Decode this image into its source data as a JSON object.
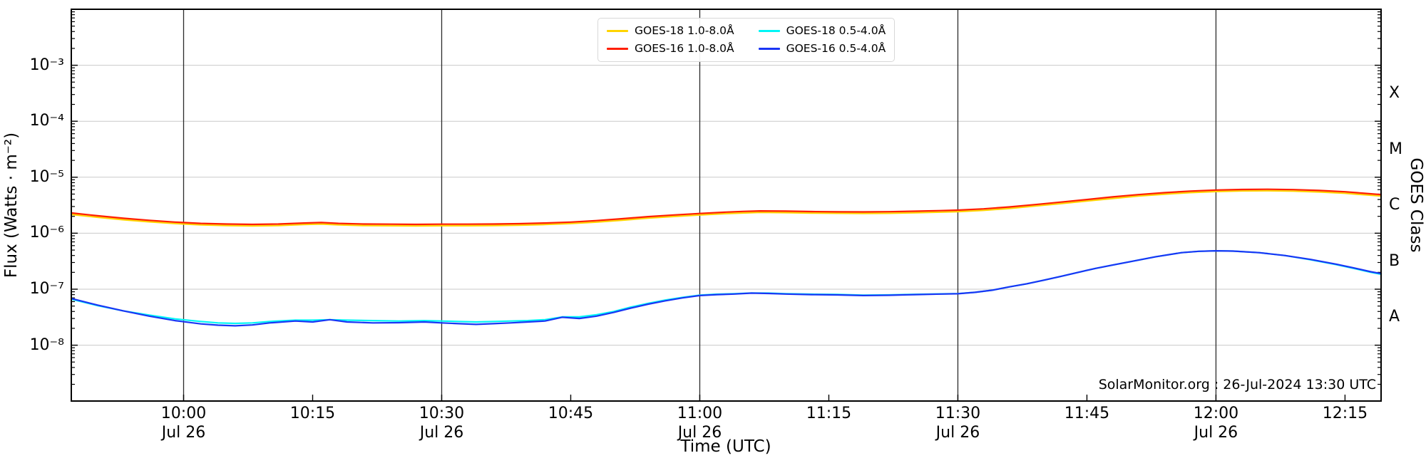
{
  "figure": {
    "xlabel": "Time (UTC)",
    "ylabel": "Flux (Watts · m⁻²)",
    "right_label": "GOES Class",
    "annotation": "SolarMonitor.org : 26-Jul-2024 13:30 UTC",
    "date_label": "Jul 26"
  },
  "legend": {
    "items": [
      {
        "label": "GOES-18 1.0-8.0Å",
        "color": "#ffd400"
      },
      {
        "label": "GOES-16 1.0-8.0Å",
        "color": "#ff1e00"
      },
      {
        "label": "GOES-18 0.5-4.0Å",
        "color": "#00f6f6"
      },
      {
        "label": "GOES-16 0.5-4.0Å",
        "color": "#1a35f5"
      }
    ]
  },
  "chart_data": {
    "type": "line",
    "title": "",
    "xlabel": "Time (UTC)",
    "ylabel": "Flux (Watts · m⁻²)",
    "yscale": "log",
    "ylim": [
      1e-09,
      0.01
    ],
    "x_unit": "minutes relative to 10:00 UTC on 26-Jul-2024",
    "x_range_minutes": [
      -13,
      139.2
    ],
    "grid": {
      "horizontal_color": "#c9c9c9",
      "vertical_color": "#2b2b2b"
    },
    "x_ticks": [
      {
        "m": 0,
        "label": "10:00",
        "sub": "Jul 26",
        "grid": true
      },
      {
        "m": 15,
        "label": "10:15",
        "sub": "",
        "grid": false
      },
      {
        "m": 30,
        "label": "10:30",
        "sub": "Jul 26",
        "grid": true
      },
      {
        "m": 45,
        "label": "10:45",
        "sub": "",
        "grid": false
      },
      {
        "m": 60,
        "label": "11:00",
        "sub": "Jul 26",
        "grid": true
      },
      {
        "m": 75,
        "label": "11:15",
        "sub": "",
        "grid": false
      },
      {
        "m": 90,
        "label": "11:30",
        "sub": "Jul 26",
        "grid": true
      },
      {
        "m": 105,
        "label": "11:45",
        "sub": "",
        "grid": false
      },
      {
        "m": 120,
        "label": "12:00",
        "sub": "Jul 26",
        "grid": true
      },
      {
        "m": 135,
        "label": "12:15",
        "sub": "",
        "grid": false
      }
    ],
    "y_ticks": [
      {
        "exp": -3,
        "label": "10⁻³"
      },
      {
        "exp": -4,
        "label": "10⁻⁴"
      },
      {
        "exp": -5,
        "label": "10⁻⁵"
      },
      {
        "exp": -6,
        "label": "10⁻⁶"
      },
      {
        "exp": -7,
        "label": "10⁻⁷"
      },
      {
        "exp": -8,
        "label": "10⁻⁸"
      }
    ],
    "goes_classes": [
      {
        "label": "X",
        "exp": -3.5
      },
      {
        "label": "M",
        "exp": -4.5
      },
      {
        "label": "C",
        "exp": -5.5
      },
      {
        "label": "B",
        "exp": -6.5
      },
      {
        "label": "A",
        "exp": -7.5
      }
    ],
    "series": [
      {
        "name": "GOES-18 1.0-8.0Å",
        "color": "#ffd400",
        "x": [
          -13,
          -10,
          -7,
          -4,
          -1,
          2,
          5,
          8,
          11,
          14,
          16,
          18,
          21,
          24,
          27,
          30,
          33,
          36,
          39,
          42,
          45,
          48,
          51,
          54,
          57,
          60,
          63,
          65,
          67,
          70,
          73,
          76,
          79,
          82,
          85,
          88,
          90,
          93,
          96,
          99,
          102,
          105,
          108,
          111,
          114,
          117,
          120,
          123,
          126,
          129,
          132,
          135,
          137,
          139.2
        ],
        "y": [
          2.16e-06,
          1.93e-06,
          1.74e-06,
          1.6e-06,
          1.49e-06,
          1.41e-06,
          1.37e-06,
          1.35e-06,
          1.37e-06,
          1.43e-06,
          1.46e-06,
          1.41e-06,
          1.37e-06,
          1.36e-06,
          1.35e-06,
          1.36e-06,
          1.36e-06,
          1.37e-06,
          1.39e-06,
          1.43e-06,
          1.49e-06,
          1.58e-06,
          1.71e-06,
          1.86e-06,
          1.99e-06,
          2.12e-06,
          2.24e-06,
          2.3e-06,
          2.35e-06,
          2.33e-06,
          2.29e-06,
          2.27e-06,
          2.26e-06,
          2.27e-06,
          2.32e-06,
          2.38e-06,
          2.43e-06,
          2.56e-06,
          2.77e-06,
          3.06e-06,
          3.38e-06,
          3.76e-06,
          4.18e-06,
          4.61e-06,
          4.98e-06,
          5.31e-06,
          5.55e-06,
          5.69e-06,
          5.73e-06,
          5.64e-06,
          5.45e-06,
          5.17e-06,
          4.89e-06,
          4.61e-06
        ]
      },
      {
        "name": "GOES-16 1.0-8.0Å",
        "color": "#ff1e00",
        "x": [
          -13,
          -10,
          -7,
          -4,
          -1,
          2,
          5,
          8,
          11,
          14,
          16,
          18,
          21,
          24,
          27,
          30,
          33,
          36,
          39,
          42,
          45,
          48,
          51,
          54,
          57,
          60,
          63,
          65,
          67,
          70,
          73,
          76,
          79,
          82,
          85,
          88,
          90,
          93,
          96,
          99,
          102,
          105,
          108,
          111,
          114,
          117,
          120,
          123,
          126,
          129,
          132,
          135,
          137,
          139.2
        ],
        "y": [
          2.3e-06,
          2.05e-06,
          1.85e-06,
          1.7e-06,
          1.58e-06,
          1.5e-06,
          1.46e-06,
          1.44e-06,
          1.46e-06,
          1.52e-06,
          1.55e-06,
          1.5e-06,
          1.46e-06,
          1.45e-06,
          1.44e-06,
          1.45e-06,
          1.45e-06,
          1.46e-06,
          1.48e-06,
          1.52e-06,
          1.58e-06,
          1.68e-06,
          1.82e-06,
          1.98e-06,
          2.12e-06,
          2.25e-06,
          2.38e-06,
          2.45e-06,
          2.5e-06,
          2.48e-06,
          2.44e-06,
          2.41e-06,
          2.4e-06,
          2.42e-06,
          2.47e-06,
          2.53e-06,
          2.58e-06,
          2.72e-06,
          2.95e-06,
          3.25e-06,
          3.6e-06,
          4e-06,
          4.45e-06,
          4.9e-06,
          5.3e-06,
          5.65e-06,
          5.9e-06,
          6.05e-06,
          6.1e-06,
          6e-06,
          5.8e-06,
          5.5e-06,
          5.2e-06,
          4.9e-06
        ]
      },
      {
        "name": "GOES-18 0.5-4.0Å",
        "color": "#00f6f6",
        "x": [
          -13,
          -10,
          -7,
          -4,
          -1,
          2,
          4,
          6,
          8,
          10,
          13,
          15,
          17,
          19,
          22,
          25,
          28,
          30,
          32,
          34,
          36,
          38,
          40,
          42,
          44,
          46,
          48,
          50,
          52,
          54,
          56,
          58,
          60,
          62,
          64,
          66,
          68,
          70,
          73,
          76,
          79,
          82,
          85,
          88,
          90,
          92,
          94,
          96,
          98,
          100,
          102,
          104,
          106,
          108,
          110,
          113,
          116,
          118,
          120,
          122,
          125,
          128,
          131,
          134,
          136,
          138,
          139.2
        ],
        "y": [
          6.6e-08,
          5.1e-08,
          4.1e-08,
          3.45e-08,
          2.95e-08,
          2.65e-08,
          2.5e-08,
          2.45e-08,
          2.5e-08,
          2.65e-08,
          2.8e-08,
          2.8e-08,
          2.85e-08,
          2.8e-08,
          2.75e-08,
          2.7e-08,
          2.75e-08,
          2.7e-08,
          2.65e-08,
          2.6e-08,
          2.65e-08,
          2.7e-08,
          2.75e-08,
          2.85e-08,
          3.2e-08,
          3.2e-08,
          3.5e-08,
          4e-08,
          4.8e-08,
          5.6e-08,
          6.4e-08,
          7.15e-08,
          7.85e-08,
          8.15e-08,
          8.3e-08,
          8.55e-08,
          8.5e-08,
          8.3e-08,
          8.15e-08,
          8.05e-08,
          7.85e-08,
          7.9e-08,
          8.1e-08,
          8.25e-08,
          8.35e-08,
          8.8e-08,
          9.6e-08,
          1.1e-07,
          1.25e-07,
          1.45e-07,
          1.7e-07,
          2e-07,
          2.35e-07,
          2.7e-07,
          3.1e-07,
          3.8e-07,
          4.5e-07,
          4.75e-07,
          4.85e-07,
          4.8e-07,
          4.5e-07,
          4e-07,
          3.35e-07,
          2.75e-07,
          2.35e-07,
          2e-07,
          1.85e-07
        ]
      },
      {
        "name": "GOES-16 0.5-4.0Å",
        "color": "#1a35f5",
        "x": [
          -13,
          -10,
          -7,
          -4,
          -1,
          2,
          4,
          6,
          8,
          10,
          13,
          15,
          17,
          19,
          22,
          25,
          28,
          30,
          32,
          34,
          36,
          38,
          40,
          42,
          44,
          46,
          48,
          50,
          52,
          54,
          56,
          58,
          60,
          62,
          64,
          66,
          68,
          70,
          73,
          76,
          79,
          82,
          85,
          88,
          90,
          92,
          94,
          96,
          98,
          100,
          102,
          104,
          106,
          108,
          110,
          113,
          116,
          118,
          120,
          122,
          125,
          128,
          131,
          134,
          136,
          138,
          139.2
        ],
        "y": [
          6.8e-08,
          5.2e-08,
          4.1e-08,
          3.3e-08,
          2.75e-08,
          2.4e-08,
          2.28e-08,
          2.22e-08,
          2.3e-08,
          2.5e-08,
          2.7e-08,
          2.6e-08,
          2.85e-08,
          2.6e-08,
          2.5e-08,
          2.52e-08,
          2.6e-08,
          2.5e-08,
          2.42e-08,
          2.35e-08,
          2.42e-08,
          2.5e-08,
          2.6e-08,
          2.7e-08,
          3.15e-08,
          3e-08,
          3.3e-08,
          3.85e-08,
          4.6e-08,
          5.4e-08,
          6.2e-08,
          7e-08,
          7.7e-08,
          8e-08,
          8.2e-08,
          8.5e-08,
          8.4e-08,
          8.2e-08,
          8e-08,
          7.9e-08,
          7.7e-08,
          7.8e-08,
          8e-08,
          8.2e-08,
          8.3e-08,
          8.8e-08,
          9.6e-08,
          1.1e-07,
          1.25e-07,
          1.45e-07,
          1.7e-07,
          2e-07,
          2.35e-07,
          2.7e-07,
          3.1e-07,
          3.8e-07,
          4.5e-07,
          4.75e-07,
          4.85e-07,
          4.8e-07,
          4.5e-07,
          4e-07,
          3.4e-07,
          2.8e-07,
          2.4e-07,
          2.05e-07,
          1.9e-07
        ]
      }
    ],
    "legend_position": "upper center"
  }
}
